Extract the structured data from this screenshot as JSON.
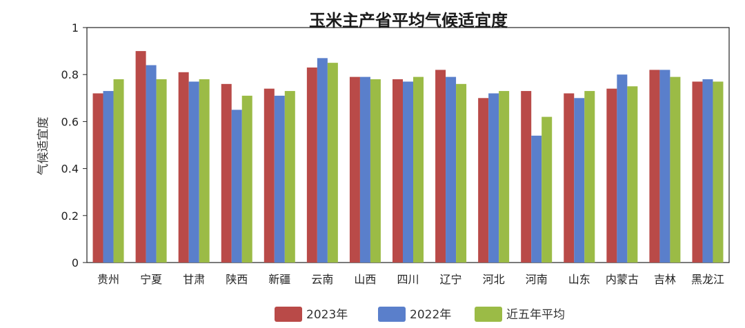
{
  "chart_data": {
    "type": "bar",
    "title": "玉米主产省平均气候适宜度",
    "xlabel": "",
    "ylabel": "气候适宜度",
    "ylim": [
      0,
      1
    ],
    "yticks": [
      "0",
      "0.2",
      "0.4",
      "0.6",
      "0.8",
      "1"
    ],
    "yticks_values": [
      0,
      0.2,
      0.4,
      0.6,
      0.8,
      1
    ],
    "grid": false,
    "legend_position": "bottom",
    "categories": [
      "贵州",
      "宁夏",
      "甘肃",
      "陕西",
      "新疆",
      "云南",
      "山西",
      "四川",
      "辽宁",
      "河北",
      "河南",
      "山东",
      "内蒙古",
      "吉林",
      "黑龙江"
    ],
    "series": [
      {
        "name": "2023年",
        "color": "#b94a48",
        "values": [
          0.72,
          0.9,
          0.81,
          0.76,
          0.74,
          0.83,
          0.79,
          0.78,
          0.82,
          0.7,
          0.73,
          0.72,
          0.74,
          0.82,
          0.77
        ]
      },
      {
        "name": "2022年",
        "color": "#5a7fcb",
        "values": [
          0.73,
          0.84,
          0.77,
          0.65,
          0.71,
          0.87,
          0.79,
          0.77,
          0.79,
          0.72,
          0.54,
          0.7,
          0.8,
          0.82,
          0.78
        ]
      },
      {
        "name": "近五年平均",
        "color": "#9bbb46",
        "values": [
          0.78,
          0.78,
          0.78,
          0.71,
          0.73,
          0.85,
          0.78,
          0.79,
          0.76,
          0.73,
          0.62,
          0.73,
          0.75,
          0.79,
          0.77
        ]
      }
    ]
  }
}
